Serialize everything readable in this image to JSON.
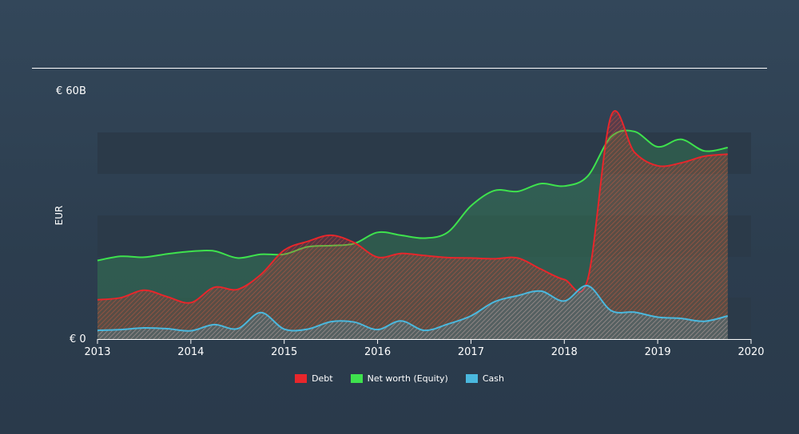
{
  "chart_data": {
    "type": "area",
    "ylabel": "EUR",
    "y_max_label": "€ 60B",
    "y_min_label": "€ 0",
    "ylim": [
      0,
      60
    ],
    "xlim": [
      2013.0,
      2020.0
    ],
    "x_ticks": [
      2013,
      2014,
      2015,
      2016,
      2017,
      2018,
      2019,
      2020
    ],
    "x_tick_labels": [
      "2013",
      "2014",
      "2015",
      "2016",
      "2017",
      "2018",
      "2019",
      "2020"
    ],
    "grid": true,
    "legend_position": "bottom-center",
    "series": [
      {
        "name": "Debt",
        "color": "#e8262b",
        "x": [
          2013.0,
          2013.25,
          2013.5,
          2013.75,
          2014.0,
          2014.25,
          2014.5,
          2014.75,
          2015.0,
          2015.25,
          2015.5,
          2015.75,
          2016.0,
          2016.25,
          2016.5,
          2016.75,
          2017.0,
          2017.25,
          2017.5,
          2017.75,
          2018.0,
          2018.25,
          2018.5,
          2018.75,
          2019.0,
          2019.25,
          2019.5,
          2019.75
        ],
        "values": [
          9.5,
          10.0,
          11.8,
          10.2,
          8.8,
          12.5,
          12.0,
          15.6,
          21.5,
          23.6,
          25.1,
          23.3,
          19.8,
          20.7,
          20.2,
          19.7,
          19.6,
          19.4,
          19.6,
          16.9,
          14.4,
          14.4,
          53.9,
          45.2,
          41.9,
          42.6,
          44.2,
          44.7
        ]
      },
      {
        "name": "Net worth (Equity)",
        "color": "#3ee24d",
        "x": [
          2013.0,
          2013.25,
          2013.5,
          2013.75,
          2014.0,
          2014.25,
          2014.5,
          2014.75,
          2015.0,
          2015.25,
          2015.5,
          2015.75,
          2016.0,
          2016.25,
          2016.5,
          2016.75,
          2017.0,
          2017.25,
          2017.5,
          2017.75,
          2018.0,
          2018.25,
          2018.5,
          2018.75,
          2019.0,
          2019.25,
          2019.5,
          2019.75
        ],
        "values": [
          19.0,
          20.0,
          19.8,
          20.6,
          21.2,
          21.3,
          19.6,
          20.5,
          20.5,
          22.3,
          22.6,
          23.1,
          25.8,
          25.1,
          24.4,
          25.8,
          32.2,
          35.9,
          35.7,
          37.6,
          37.0,
          39.4,
          48.9,
          50.2,
          46.5,
          48.3,
          45.5,
          46.3
        ]
      },
      {
        "name": "Cash",
        "color": "#4ab8de",
        "x": [
          2013.0,
          2013.25,
          2013.5,
          2013.75,
          2014.0,
          2014.25,
          2014.5,
          2014.75,
          2015.0,
          2015.25,
          2015.5,
          2015.75,
          2016.0,
          2016.25,
          2016.5,
          2016.75,
          2017.0,
          2017.25,
          2017.5,
          2017.75,
          2018.0,
          2018.25,
          2018.5,
          2018.75,
          2019.0,
          2019.25,
          2019.5,
          2019.75
        ],
        "values": [
          2.1,
          2.3,
          2.7,
          2.5,
          2.0,
          3.5,
          2.5,
          6.4,
          2.4,
          2.4,
          4.2,
          4.1,
          2.3,
          4.4,
          2.1,
          3.6,
          5.6,
          9.0,
          10.5,
          11.6,
          9.2,
          12.9,
          6.9,
          6.5,
          5.3,
          5.0,
          4.3,
          5.6
        ]
      }
    ]
  }
}
